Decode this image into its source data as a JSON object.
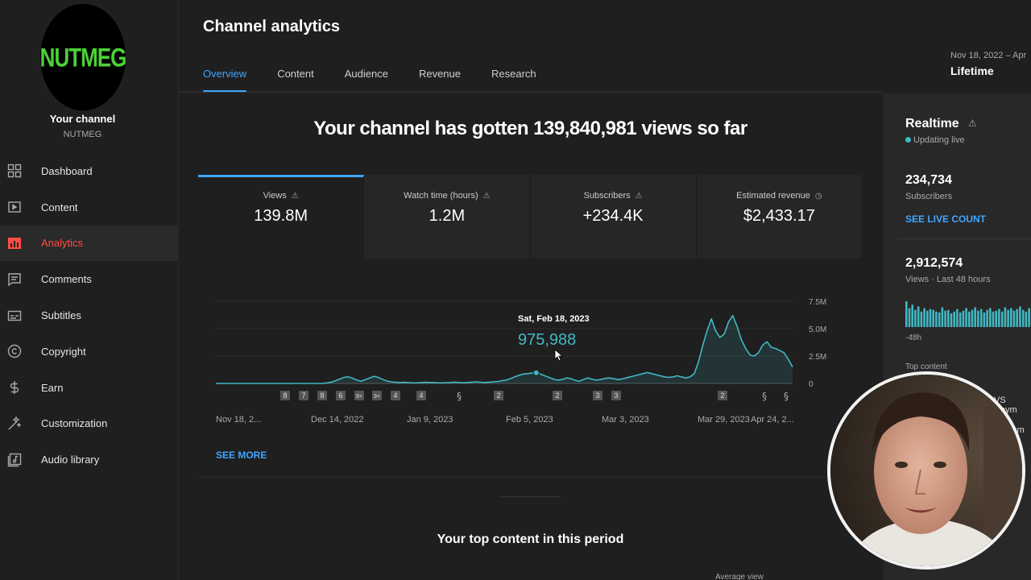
{
  "sidebar": {
    "channel_logo_text": "NUTMEG",
    "channel_title": "Your channel",
    "channel_name": "NUTMEG",
    "items": [
      {
        "label": "Dashboard",
        "icon": "dashboard-icon"
      },
      {
        "label": "Content",
        "icon": "content-icon"
      },
      {
        "label": "Analytics",
        "icon": "analytics-icon",
        "active": true
      },
      {
        "label": "Comments",
        "icon": "comments-icon"
      },
      {
        "label": "Subtitles",
        "icon": "subtitles-icon"
      },
      {
        "label": "Copyright",
        "icon": "copyright-icon"
      },
      {
        "label": "Earn",
        "icon": "earn-icon"
      },
      {
        "label": "Customization",
        "icon": "customization-icon"
      },
      {
        "label": "Audio library",
        "icon": "audio-library-icon"
      }
    ]
  },
  "header": {
    "title": "Channel analytics",
    "tabs": [
      "Overview",
      "Content",
      "Audience",
      "Revenue",
      "Research"
    ],
    "active_tab": "Overview",
    "date_range": "Nov 18, 2022 – Apr",
    "period": "Lifetime"
  },
  "overview": {
    "headline": "Your channel has gotten 139,840,981 views so far",
    "metrics": [
      {
        "label": "Views",
        "value": "139.8M",
        "icon": "warning-icon"
      },
      {
        "label": "Watch time (hours)",
        "value": "1.2M",
        "icon": "warning-icon"
      },
      {
        "label": "Subscribers",
        "value": "+234.4K",
        "icon": "warning-icon"
      },
      {
        "label": "Estimated revenue",
        "value": "$2,433.17",
        "icon": "clock-icon"
      }
    ],
    "see_more": "SEE MORE",
    "top_content_title": "Your top content in this period",
    "avg_view_label": "Average view"
  },
  "tooltip": {
    "date": "Sat, Feb 18, 2023",
    "value": "975,988"
  },
  "chart_data": {
    "type": "area",
    "x_tick_labels": [
      "Nov 18, 2...",
      "Dec 14, 2022",
      "Jan 9, 2023",
      "Feb 5, 2023",
      "Mar 3, 2023",
      "Mar 29, 2023",
      "Apr 24, 2..."
    ],
    "y_tick_labels": [
      "7.5M",
      "5.0M",
      "2.5M",
      "0"
    ],
    "ylim": [
      0,
      7500000
    ],
    "series": [
      {
        "values": [
          0,
          0,
          0,
          0,
          0,
          0,
          0,
          0,
          0,
          0,
          0,
          0,
          0,
          0,
          0,
          0,
          0,
          0,
          0,
          0,
          0,
          0,
          0,
          0,
          0,
          0,
          50000,
          120000,
          250000,
          400000,
          550000,
          600000,
          480000,
          300000,
          200000,
          350000,
          500000,
          650000,
          550000,
          380000,
          220000,
          150000,
          100000,
          90000,
          100000,
          80000,
          50000,
          60000,
          80000,
          100000,
          90000,
          80000,
          60000,
          50000,
          70000,
          90000,
          120000,
          80000,
          60000,
          90000,
          120000,
          150000,
          110000,
          90000,
          120000,
          150000,
          180000,
          250000,
          300000,
          450000,
          600000,
          750000,
          850000,
          900000,
          950000,
          975988,
          850000,
          700000,
          550000,
          400000,
          300000,
          350000,
          500000,
          450000,
          300000,
          200000,
          350000,
          500000,
          400000,
          300000,
          350000,
          450000,
          500000,
          450000,
          350000,
          400000,
          500000,
          600000,
          700000,
          800000,
          900000,
          1000000,
          900000,
          800000,
          700000,
          600000,
          550000,
          600000,
          700000,
          600000,
          500000,
          600000,
          900000,
          2000000,
          3500000,
          4800000,
          5900000,
          4800000,
          4200000,
          4500000,
          5600000,
          6200000,
          5200000,
          4000000,
          3200000,
          2600000,
          2500000,
          2800000,
          3500000,
          3800000,
          3300000,
          3200000,
          3000000,
          2800000,
          2200000,
          1500000
        ]
      }
    ],
    "annotation_markers": [
      "8",
      "7",
      "8",
      "6",
      "9+",
      "9+",
      "4",
      "4",
      "shorts",
      "2",
      "2",
      "3",
      "3",
      "2",
      "shorts",
      "shorts"
    ],
    "tooltip": {
      "date": "Sat, Feb 18, 2023",
      "value": 975988
    },
    "grid": true,
    "legend": "none"
  },
  "realtime": {
    "title": "Realtime",
    "status": "Updating live",
    "subscribers_value": "234,734",
    "subscribers_label": "Subscribers",
    "see_live_count": "SEE LIVE COUNT",
    "views_value": "2,912,574",
    "views_label": "Views · Last 48 hours",
    "bars_label": "-48h",
    "bars_values": [
      30,
      22,
      26,
      20,
      24,
      18,
      22,
      19,
      21,
      20,
      18,
      17,
      23,
      19,
      20,
      16,
      18,
      21,
      17,
      19,
      22,
      18,
      20,
      23,
      19,
      21,
      17,
      20,
      22,
      18,
      19,
      21,
      18,
      23,
      20,
      22,
      19,
      21,
      24,
      20,
      18,
      22
    ],
    "top_content_label": "Top content",
    "peek1": "VS Neym",
    "peek2": "iam"
  },
  "colors": {
    "accent": "#3ea6ff",
    "chart_line": "#41b7c4",
    "analytics_active": "#ff4e45",
    "logo_text": "#4cd137"
  }
}
